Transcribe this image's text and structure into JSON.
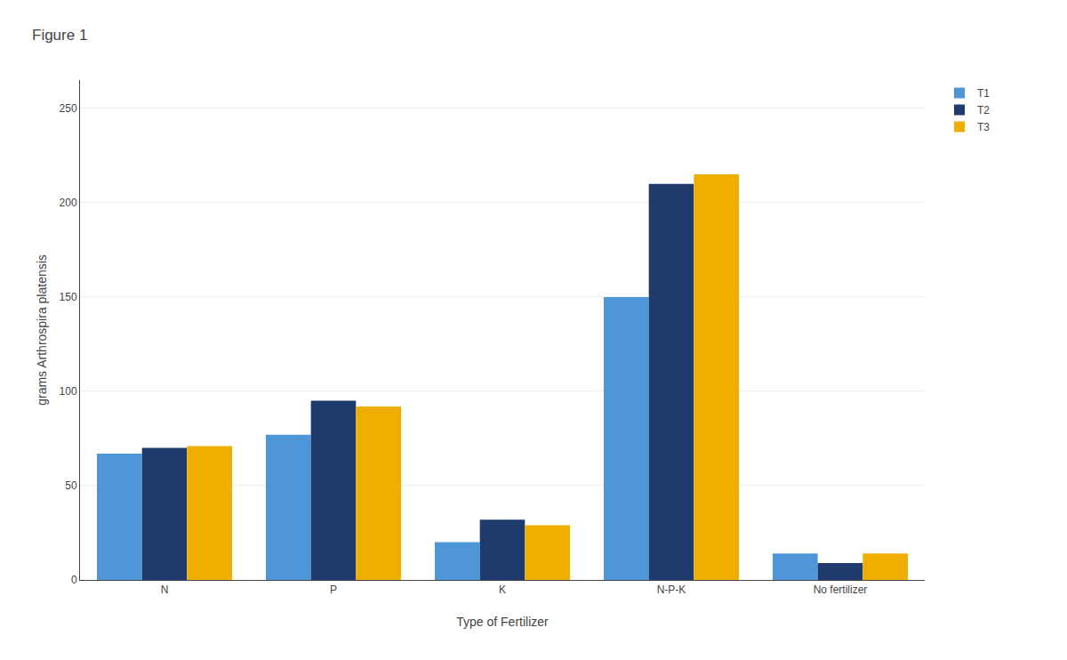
{
  "chart_data": {
    "type": "bar",
    "title": "Figure 1",
    "xlabel": "Type of Fertilizer",
    "ylabel": "grams Arthrospira platensis",
    "categories": [
      "N",
      "P",
      "K",
      "N-P-K",
      "No fertilizer"
    ],
    "series": [
      {
        "name": "T1",
        "color": "#4F96D8",
        "values": [
          67,
          77,
          20,
          150,
          14
        ]
      },
      {
        "name": "T2",
        "color": "#1F3B6E",
        "values": [
          70,
          95,
          32,
          210,
          9
        ]
      },
      {
        "name": "T3",
        "color": "#F0AE00",
        "values": [
          71,
          92,
          29,
          215,
          14
        ]
      }
    ],
    "ylim": [
      0,
      265
    ],
    "yticks": [
      0,
      50,
      100,
      150,
      200,
      250
    ],
    "grid": true,
    "legend": "right"
  }
}
